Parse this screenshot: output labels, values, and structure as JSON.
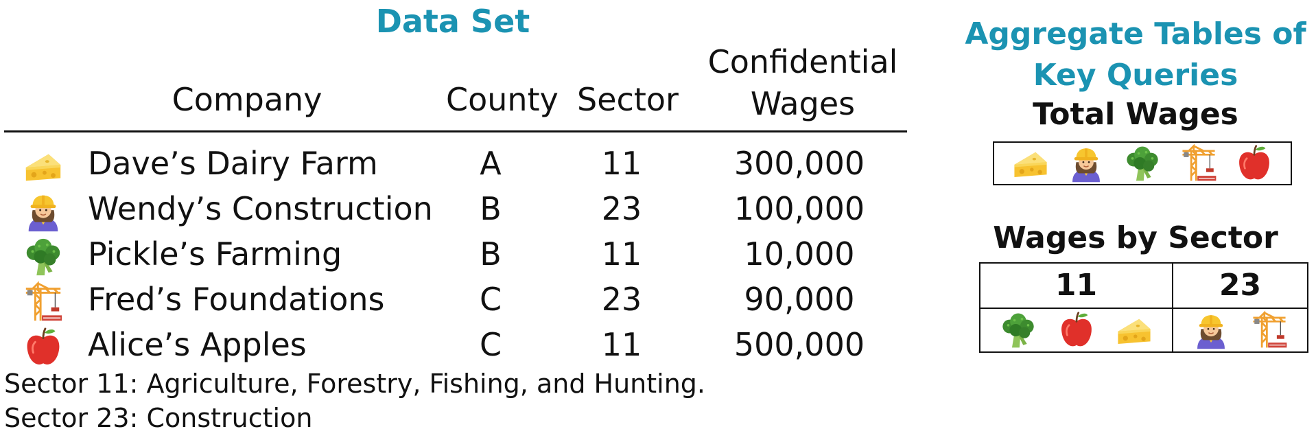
{
  "data_set": {
    "title": "Data Set",
    "headers": {
      "company": "Company",
      "county": "County",
      "sector": "Sector",
      "wages_line1": "Confidential",
      "wages_line2": "Wages"
    },
    "rows": [
      {
        "icon": "cheese-icon",
        "company": "Dave’s Dairy Farm",
        "county": "A",
        "sector": "11",
        "wages": "300,000"
      },
      {
        "icon": "construction-worker-icon",
        "company": "Wendy’s Construction",
        "county": "B",
        "sector": "23",
        "wages": "100,000"
      },
      {
        "icon": "broccoli-icon",
        "company": "Pickle’s Farming",
        "county": "B",
        "sector": "11",
        "wages": "10,000"
      },
      {
        "icon": "crane-icon",
        "company": "Fred’s Foundations",
        "county": "C",
        "sector": "23",
        "wages": "90,000"
      },
      {
        "icon": "apple-icon",
        "company": "Alice’s Apples",
        "county": "C",
        "sector": "11",
        "wages": "500,000"
      }
    ],
    "notes": [
      "Sector 11: Agriculture, Forestry, Fishing, and Hunting.",
      "Sector 23: Construction"
    ]
  },
  "aggregates": {
    "title_line1": "Aggregate Tables of",
    "title_line2": "Key Queries",
    "total_wages": {
      "title": "Total Wages",
      "icons": [
        "cheese-icon",
        "construction-worker-icon",
        "broccoli-icon",
        "crane-icon",
        "apple-icon"
      ]
    },
    "wages_by_sector": {
      "title": "Wages by Sector",
      "columns": [
        {
          "sector": "11",
          "icons": [
            "broccoli-icon",
            "apple-icon",
            "cheese-icon"
          ]
        },
        {
          "sector": "23",
          "icons": [
            "construction-worker-icon",
            "crane-icon"
          ]
        }
      ]
    }
  },
  "colors": {
    "title_accent": "#1b93b2",
    "text": "#111111"
  }
}
